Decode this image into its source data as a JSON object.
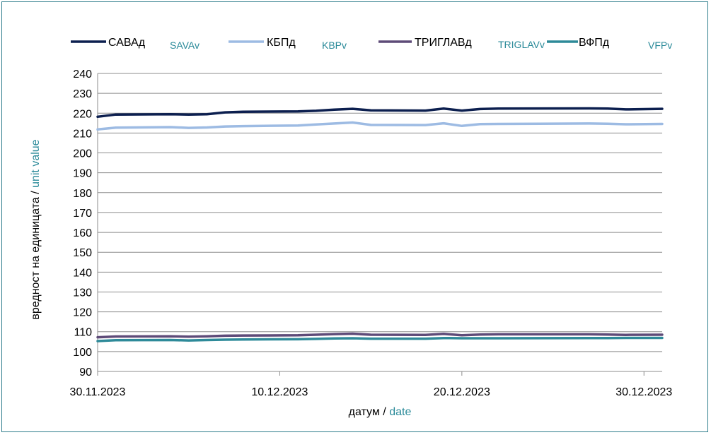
{
  "chart_data": {
    "type": "line",
    "xlabel": {
      "primary": "датум",
      "separator": " / ",
      "secondary": "date"
    },
    "ylabel": {
      "primary": "вредност на единицата",
      "separator": " / ",
      "secondary": "unit value"
    },
    "ylim": [
      90,
      240
    ],
    "yticks": [
      90,
      100,
      110,
      120,
      130,
      140,
      150,
      160,
      170,
      180,
      190,
      200,
      210,
      220,
      230,
      240
    ],
    "x_start": "30.11.2023",
    "x_end": "31.12.2023",
    "xtick_labels": [
      "30.11.2023",
      "10.12.2023",
      "20.12.2023",
      "30.12.2023"
    ],
    "grid": true,
    "legend_position": "top",
    "series": [
      {
        "name": "САВАд",
        "name_en": "SAVAv",
        "color": "#0c1f4f",
        "x": [
          "30.11.2023",
          "01.12.2023",
          "04.12.2023",
          "05.12.2023",
          "06.12.2023",
          "07.12.2023",
          "08.12.2023",
          "11.12.2023",
          "12.12.2023",
          "13.12.2023",
          "14.12.2023",
          "15.12.2023",
          "18.12.2023",
          "19.12.2023",
          "20.12.2023",
          "21.12.2023",
          "22.12.2023",
          "27.12.2023",
          "28.12.2023",
          "29.12.2023",
          "31.12.2023"
        ],
        "values": [
          218.2,
          219.3,
          219.5,
          219.3,
          219.5,
          220.4,
          220.7,
          220.9,
          221.2,
          221.8,
          222.2,
          221.4,
          221.3,
          222.3,
          221.3,
          222.1,
          222.3,
          222.4,
          222.3,
          221.9,
          222.2
        ]
      },
      {
        "name": "КБПд",
        "name_en": "KBPv",
        "color": "#9dbbe3",
        "x": [
          "30.11.2023",
          "01.12.2023",
          "04.12.2023",
          "05.12.2023",
          "06.12.2023",
          "07.12.2023",
          "08.12.2023",
          "11.12.2023",
          "12.12.2023",
          "13.12.2023",
          "14.12.2023",
          "15.12.2023",
          "18.12.2023",
          "19.12.2023",
          "20.12.2023",
          "21.12.2023",
          "22.12.2023",
          "27.12.2023",
          "28.12.2023",
          "29.12.2023",
          "31.12.2023"
        ],
        "values": [
          211.8,
          212.7,
          213.0,
          212.6,
          212.8,
          213.3,
          213.5,
          213.8,
          214.3,
          214.8,
          215.3,
          214.1,
          214.0,
          214.9,
          213.6,
          214.5,
          214.6,
          214.8,
          214.7,
          214.4,
          214.6
        ]
      },
      {
        "name": "ТРИГЛАВд",
        "name_en": "TRIGLAVv",
        "color": "#5e4b78",
        "x": [
          "30.11.2023",
          "01.12.2023",
          "04.12.2023",
          "05.12.2023",
          "06.12.2023",
          "07.12.2023",
          "08.12.2023",
          "11.12.2023",
          "12.12.2023",
          "13.12.2023",
          "14.12.2023",
          "15.12.2023",
          "18.12.2023",
          "19.12.2023",
          "20.12.2023",
          "21.12.2023",
          "22.12.2023",
          "27.12.2023",
          "28.12.2023",
          "29.12.2023",
          "31.12.2023"
        ],
        "values": [
          107.2,
          107.6,
          107.7,
          107.5,
          107.7,
          108.0,
          108.1,
          108.2,
          108.5,
          108.8,
          109.0,
          108.5,
          108.4,
          108.9,
          108.2,
          108.6,
          108.7,
          108.7,
          108.6,
          108.4,
          108.5
        ]
      },
      {
        "name": "ВФПд",
        "name_en": "VFPv",
        "color": "#2e8a99",
        "x": [
          "30.11.2023",
          "01.12.2023",
          "04.12.2023",
          "05.12.2023",
          "06.12.2023",
          "07.12.2023",
          "08.12.2023",
          "11.12.2023",
          "12.12.2023",
          "13.12.2023",
          "14.12.2023",
          "15.12.2023",
          "18.12.2023",
          "19.12.2023",
          "20.12.2023",
          "21.12.2023",
          "22.12.2023",
          "27.12.2023",
          "28.12.2023",
          "29.12.2023",
          "31.12.2023"
        ],
        "values": [
          105.3,
          105.7,
          105.8,
          105.6,
          105.8,
          106.0,
          106.1,
          106.2,
          106.4,
          106.6,
          106.7,
          106.5,
          106.5,
          106.8,
          106.7,
          106.7,
          106.7,
          106.8,
          106.8,
          106.9,
          106.9
        ]
      }
    ]
  }
}
